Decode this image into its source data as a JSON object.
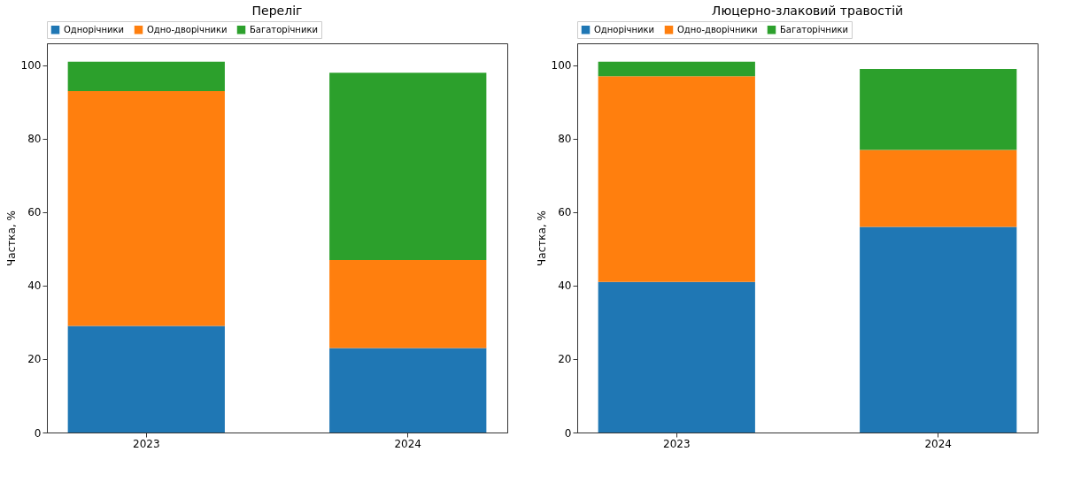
{
  "chart_data": [
    {
      "type": "bar",
      "title": "Переліг",
      "ylabel": "Частка, %",
      "categories": [
        "2023",
        "2024"
      ],
      "stacked": true,
      "ylim": [
        0,
        106
      ],
      "yticks": [
        0,
        20,
        40,
        60,
        80,
        100
      ],
      "grid": false,
      "legend": "top",
      "series": [
        {
          "name": "Однорічники",
          "color": "#1f77b4",
          "values": [
            29,
            23
          ]
        },
        {
          "name": "Одно-дворічники",
          "color": "#ff7f0e",
          "values": [
            64,
            24
          ]
        },
        {
          "name": "Багаторічники",
          "color": "#2ca02c",
          "values": [
            8,
            51
          ]
        }
      ]
    },
    {
      "type": "bar",
      "title": "Люцерно-злаковий травостій",
      "ylabel": "Частка, %",
      "categories": [
        "2023",
        "2024"
      ],
      "stacked": true,
      "ylim": [
        0,
        106
      ],
      "yticks": [
        0,
        20,
        40,
        60,
        80,
        100
      ],
      "grid": false,
      "legend": "top",
      "series": [
        {
          "name": "Однорічники",
          "color": "#1f77b4",
          "values": [
            41,
            56
          ]
        },
        {
          "name": "Одно-дворічники",
          "color": "#ff7f0e",
          "values": [
            56,
            21
          ]
        },
        {
          "name": "Багаторічники",
          "color": "#2ca02c",
          "values": [
            4,
            22
          ]
        }
      ]
    }
  ]
}
